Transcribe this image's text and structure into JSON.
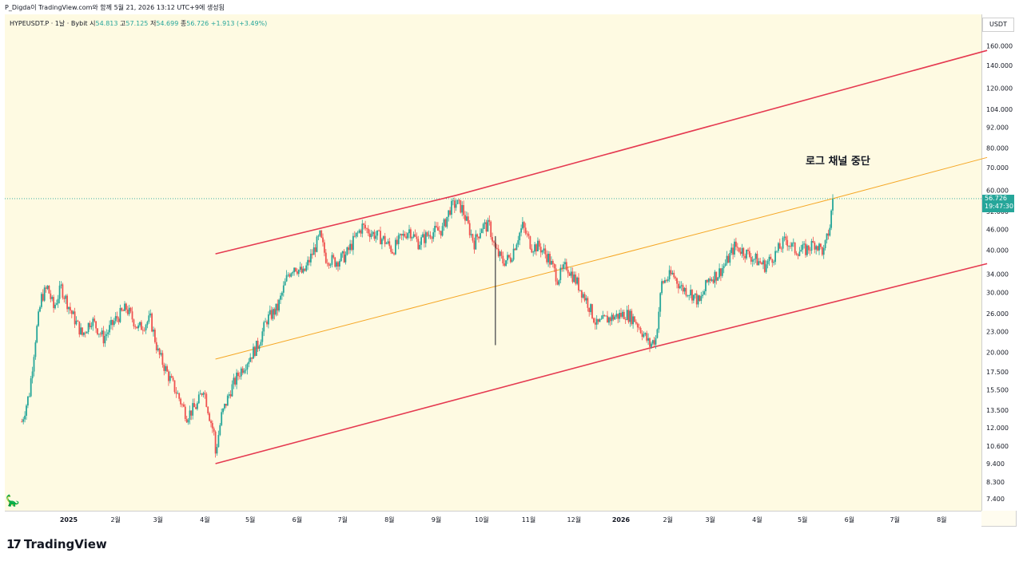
{
  "caption": "P_Digda이 TradingView.com와 함께 5월 21, 2026 13:12 UTC+9에 생성됨",
  "legend": {
    "symbol": "HYPEUSDT.P · 1날 · Bybit",
    "open_label": "시",
    "open": "54.813",
    "high_label": "고",
    "high": "57.125",
    "low_label": "저",
    "low": "54.699",
    "close_label": "종",
    "close": "56.726",
    "change": "+1.913 (+3.49%)"
  },
  "unit": "USDT",
  "price_tag": {
    "price": "56.726",
    "countdown": "19:47:30"
  },
  "annotation": "로그 채널 중단",
  "brand": {
    "mark": "17",
    "name": "TradingView"
  },
  "colors": {
    "up": "#26a69a",
    "down": "#ef5350",
    "channel": "#e53950",
    "mid": "#f5a623",
    "background": "#fefae2"
  },
  "chart_data": {
    "type": "candlestick",
    "scale": "log",
    "y_ticks": [
      "160.000",
      "140.000",
      "120.000",
      "104.000",
      "92.000",
      "80.000",
      "70.000",
      "60.000",
      "52.000",
      "46.000",
      "40.000",
      "34.000",
      "30.000",
      "26.000",
      "23.000",
      "20.000",
      "17.500",
      "15.500",
      "13.500",
      "12.000",
      "10.600",
      "9.400",
      "8.300",
      "7.400"
    ],
    "x_ticks": [
      "2025",
      "2월",
      "3월",
      "4월",
      "5월",
      "6월",
      "7월",
      "8월",
      "9월",
      "10월",
      "11월",
      "12월",
      "2026",
      "2월",
      "3월",
      "4월",
      "5월",
      "6월",
      "7월",
      "8월"
    ],
    "price_path": [
      {
        "x": "2024-12-01",
        "y": 12.5
      },
      {
        "x": "2024-12-06",
        "y": 15.2
      },
      {
        "x": "2024-12-10",
        "y": 22
      },
      {
        "x": "2024-12-14",
        "y": 29
      },
      {
        "x": "2024-12-18",
        "y": 31
      },
      {
        "x": "2024-12-22",
        "y": 27
      },
      {
        "x": "2024-12-27",
        "y": 31
      },
      {
        "x": "2025-01-03",
        "y": 26
      },
      {
        "x": "2025-01-10",
        "y": 22.5
      },
      {
        "x": "2025-01-16",
        "y": 25
      },
      {
        "x": "2025-01-24",
        "y": 22
      },
      {
        "x": "2025-02-01",
        "y": 25
      },
      {
        "x": "2025-02-08",
        "y": 27
      },
      {
        "x": "2025-02-16",
        "y": 23.5
      },
      {
        "x": "2025-02-24",
        "y": 25
      },
      {
        "x": "2025-03-01",
        "y": 20
      },
      {
        "x": "2025-03-08",
        "y": 17
      },
      {
        "x": "2025-03-14",
        "y": 15
      },
      {
        "x": "2025-03-20",
        "y": 13
      },
      {
        "x": "2025-03-27",
        "y": 14
      },
      {
        "x": "2025-03-31",
        "y": 15.8
      },
      {
        "x": "2025-04-04",
        "y": 13
      },
      {
        "x": "2025-04-07",
        "y": 11.5
      },
      {
        "x": "2025-04-08",
        "y": 10.1
      },
      {
        "x": "2025-04-12",
        "y": 13
      },
      {
        "x": "2025-04-18",
        "y": 15.5
      },
      {
        "x": "2025-04-24",
        "y": 17.5
      },
      {
        "x": "2025-05-01",
        "y": 19.5
      },
      {
        "x": "2025-05-06",
        "y": 21
      },
      {
        "x": "2025-05-12",
        "y": 25
      },
      {
        "x": "2025-05-19",
        "y": 27
      },
      {
        "x": "2025-05-26",
        "y": 34
      },
      {
        "x": "2025-05-30",
        "y": 36
      },
      {
        "x": "2025-06-05",
        "y": 34
      },
      {
        "x": "2025-06-12",
        "y": 40
      },
      {
        "x": "2025-06-16",
        "y": 44
      },
      {
        "x": "2025-06-20",
        "y": 38
      },
      {
        "x": "2025-06-26",
        "y": 37
      },
      {
        "x": "2025-07-03",
        "y": 38.5
      },
      {
        "x": "2025-07-10",
        "y": 44
      },
      {
        "x": "2025-07-14",
        "y": 47
      },
      {
        "x": "2025-07-20",
        "y": 45
      },
      {
        "x": "2025-07-28",
        "y": 43
      },
      {
        "x": "2025-08-03",
        "y": 40
      },
      {
        "x": "2025-08-08",
        "y": 43
      },
      {
        "x": "2025-08-14",
        "y": 46
      },
      {
        "x": "2025-08-20",
        "y": 42
      },
      {
        "x": "2025-08-28",
        "y": 45
      },
      {
        "x": "2025-09-05",
        "y": 46
      },
      {
        "x": "2025-09-10",
        "y": 53
      },
      {
        "x": "2025-09-14",
        "y": 55
      },
      {
        "x": "2025-09-18",
        "y": 53
      },
      {
        "x": "2025-09-22",
        "y": 47
      },
      {
        "x": "2025-09-26",
        "y": 42
      },
      {
        "x": "2025-10-01",
        "y": 47
      },
      {
        "x": "2025-10-06",
        "y": 47
      },
      {
        "x": "2025-10-10",
        "y": 40
      },
      {
        "x": "2025-10-15",
        "y": 37
      },
      {
        "x": "2025-10-20",
        "y": 38
      },
      {
        "x": "2025-10-25",
        "y": 44
      },
      {
        "x": "2025-10-28",
        "y": 47
      },
      {
        "x": "2025-11-03",
        "y": 41
      },
      {
        "x": "2025-11-08",
        "y": 41
      },
      {
        "x": "2025-11-14",
        "y": 38
      },
      {
        "x": "2025-11-20",
        "y": 33
      },
      {
        "x": "2025-11-26",
        "y": 36
      },
      {
        "x": "2025-12-03",
        "y": 32
      },
      {
        "x": "2025-12-10",
        "y": 28
      },
      {
        "x": "2025-12-16",
        "y": 24
      },
      {
        "x": "2025-12-22",
        "y": 25
      },
      {
        "x": "2025-12-28",
        "y": 25.5
      },
      {
        "x": "2026-01-04",
        "y": 26
      },
      {
        "x": "2026-01-10",
        "y": 25
      },
      {
        "x": "2026-01-15",
        "y": 23
      },
      {
        "x": "2026-01-20",
        "y": 21
      },
      {
        "x": "2026-01-24",
        "y": 22
      },
      {
        "x": "2026-01-28",
        "y": 32
      },
      {
        "x": "2026-02-04",
        "y": 34
      },
      {
        "x": "2026-02-10",
        "y": 31
      },
      {
        "x": "2026-02-16",
        "y": 30
      },
      {
        "x": "2026-02-22",
        "y": 28
      },
      {
        "x": "2026-02-28",
        "y": 33
      },
      {
        "x": "2026-03-06",
        "y": 34
      },
      {
        "x": "2026-03-12",
        "y": 37
      },
      {
        "x": "2026-03-17",
        "y": 41
      },
      {
        "x": "2026-03-22",
        "y": 40
      },
      {
        "x": "2026-03-29",
        "y": 38
      },
      {
        "x": "2026-04-06",
        "y": 36
      },
      {
        "x": "2026-04-13",
        "y": 39
      },
      {
        "x": "2026-04-20",
        "y": 43
      },
      {
        "x": "2026-04-26",
        "y": 40
      },
      {
        "x": "2026-05-03",
        "y": 40
      },
      {
        "x": "2026-05-09",
        "y": 42
      },
      {
        "x": "2026-05-15",
        "y": 39.5
      },
      {
        "x": "2026-05-19",
        "y": 47
      },
      {
        "x": "2026-05-21",
        "y": 56.726
      }
    ],
    "wicks": [
      {
        "x": "2025-10-10",
        "low": 21,
        "high": 44
      }
    ],
    "lines": {
      "upper_channel": [
        {
          "x": "2025-04-08",
          "y": 39
        },
        {
          "x": "2025-09-14",
          "y": 58
        },
        {
          "x": "2026-08-31",
          "y": 155
        }
      ],
      "middle_line": [
        {
          "x": "2025-04-08",
          "y": 19.1
        },
        {
          "x": "2026-05-21",
          "y": 56.726
        },
        {
          "x": "2026-08-31",
          "y": 75
        }
      ],
      "lower_channel": [
        {
          "x": "2025-04-08",
          "y": 9.4
        },
        {
          "x": "2026-01-20",
          "y": 20.6
        },
        {
          "x": "2026-08-31",
          "y": 36.5
        }
      ]
    },
    "current_price_line": 56.726
  }
}
